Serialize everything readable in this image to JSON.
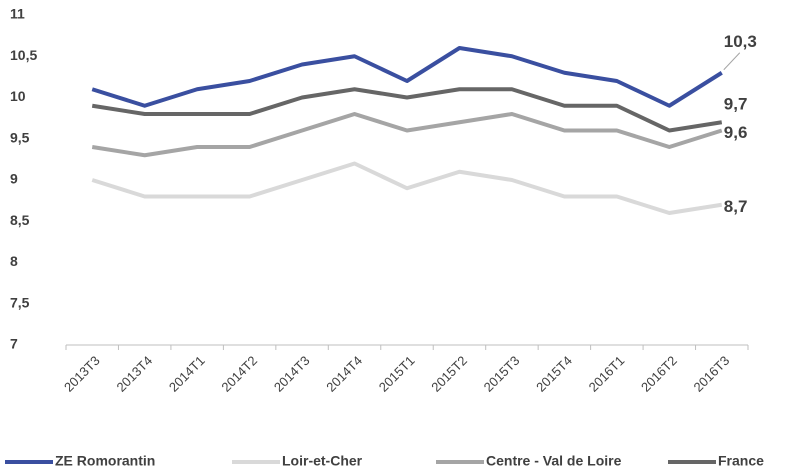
{
  "chart_data": {
    "type": "line",
    "categories": [
      "2013T3",
      "2013T4",
      "2014T1",
      "2014T2",
      "2014T3",
      "2014T4",
      "2015T1",
      "2015T2",
      "2015T3",
      "2015T4",
      "2016T1",
      "2016T2",
      "2016T3"
    ],
    "series": [
      {
        "name": "ZE Romorantin",
        "color": "#3a4fa0",
        "values": [
          10.1,
          9.9,
          10.1,
          10.2,
          10.4,
          10.5,
          10.2,
          10.6,
          10.5,
          10.3,
          10.2,
          9.9,
          10.3
        ],
        "value_labels": [
          null,
          null,
          null,
          null,
          null,
          null,
          null,
          null,
          null,
          null,
          null,
          null,
          "10,3"
        ]
      },
      {
        "name": "Loir-et-Cher",
        "color": "#d9d9d9",
        "values": [
          9.0,
          8.8,
          8.8,
          8.8,
          9.0,
          9.2,
          8.9,
          9.1,
          9.0,
          8.8,
          8.8,
          8.6,
          8.7
        ],
        "value_labels": [
          null,
          null,
          null,
          null,
          null,
          null,
          null,
          null,
          null,
          null,
          null,
          null,
          "8,7"
        ]
      },
      {
        "name": "Centre - Val de Loire",
        "color": "#a5a5a5",
        "values": [
          9.4,
          9.3,
          9.4,
          9.4,
          9.6,
          9.8,
          9.6,
          9.7,
          9.8,
          9.6,
          9.6,
          9.4,
          9.6
        ],
        "value_labels": [
          null,
          null,
          null,
          null,
          null,
          null,
          null,
          null,
          null,
          null,
          null,
          null,
          "9,6"
        ]
      },
      {
        "name": "France",
        "color": "#666666",
        "values": [
          9.9,
          9.8,
          9.8,
          9.8,
          10.0,
          10.1,
          10.0,
          10.1,
          10.1,
          9.9,
          9.9,
          9.6,
          9.7
        ],
        "value_labels": [
          null,
          null,
          null,
          null,
          null,
          null,
          null,
          null,
          null,
          null,
          null,
          null,
          "9,7"
        ]
      }
    ],
    "ylim": [
      7,
      11
    ],
    "yticks": [
      7,
      {
        "value": 7.5,
        "label": "7,5"
      },
      8,
      {
        "value": 8.5,
        "label": "8,5"
      },
      9,
      {
        "value": 9.5,
        "label": "9,5"
      },
      10,
      {
        "value": 10.5,
        "label": "10,5"
      },
      11
    ],
    "grid": false,
    "legend": "bottom"
  }
}
